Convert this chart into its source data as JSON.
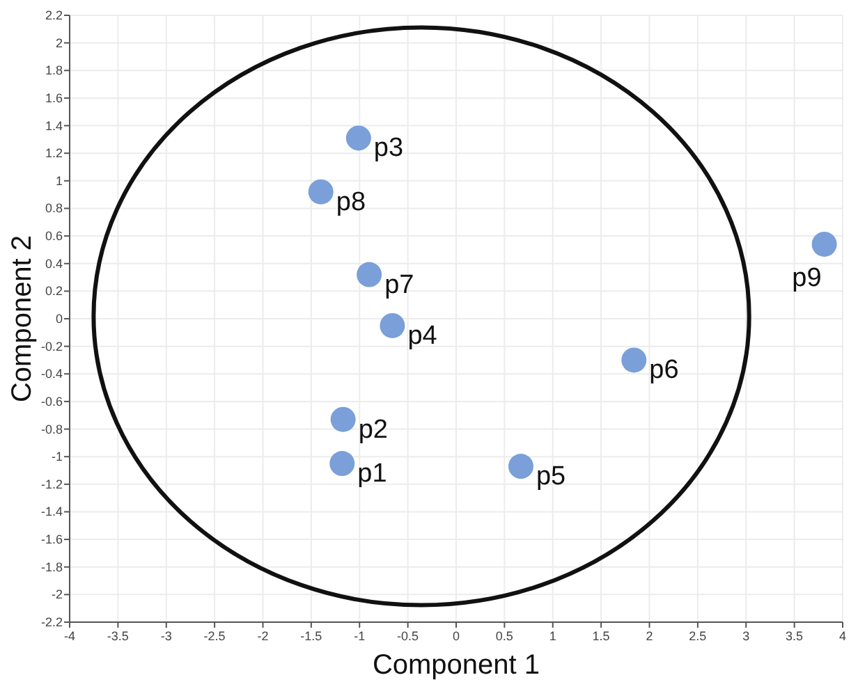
{
  "chart_data": {
    "type": "scatter",
    "xlabel": "Component 1",
    "ylabel": "Component 2",
    "xlim": [
      -4,
      4
    ],
    "ylim": [
      -2.2,
      2.2
    ],
    "xticks": [
      -4,
      -3.5,
      -3,
      -2.5,
      -2,
      -1.5,
      -1,
      -0.5,
      0,
      0.5,
      1,
      1.5,
      2,
      2.5,
      3,
      3.5,
      4
    ],
    "yticks": [
      -2.2,
      -2,
      -1.8,
      -1.6,
      -1.4,
      -1.2,
      -1,
      -0.8,
      -0.6,
      -0.4,
      -0.2,
      0,
      0.2,
      0.4,
      0.6,
      0.8,
      1,
      1.2,
      1.4,
      1.6,
      1.8,
      2,
      2.2
    ],
    "grid": true,
    "marker": "circle",
    "series": [
      {
        "type": "scatter",
        "color": "#7a9fd9",
        "x": [
          -1.18,
          -1.17,
          -1.01,
          -0.66,
          0.67,
          1.84,
          -0.9,
          -1.4,
          3.81
        ],
        "values": [
          -1.05,
          -0.73,
          1.31,
          -0.05,
          -1.07,
          -0.3,
          0.32,
          0.92,
          0.54
        ]
      }
    ],
    "annotations": [
      {
        "text": "p1",
        "x": -1.18,
        "y": -1.05
      },
      {
        "text": "p2",
        "x": -1.17,
        "y": -0.73
      },
      {
        "text": "p3",
        "x": -1.01,
        "y": 1.31
      },
      {
        "text": "p4",
        "x": -0.66,
        "y": -0.05
      },
      {
        "text": "p5",
        "x": 0.67,
        "y": -1.07
      },
      {
        "text": "p6",
        "x": 1.84,
        "y": -0.3
      },
      {
        "text": "p7",
        "x": -0.9,
        "y": 0.32
      },
      {
        "text": "p8",
        "x": -1.4,
        "y": 0.92
      },
      {
        "text": "p9",
        "x": 3.81,
        "y": 0.54
      }
    ]
  }
}
